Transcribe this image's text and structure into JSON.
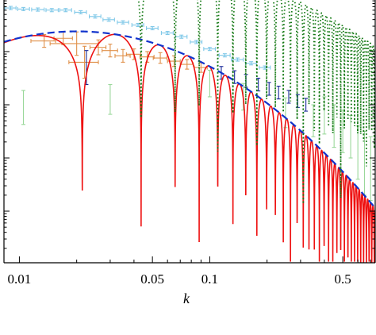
{
  "chart_data": {
    "type": "line",
    "title": "",
    "xlabel": "k",
    "ylabel": "",
    "x_scale": "log",
    "y_scale": "log",
    "xlim": [
      0.0083,
      0.74
    ],
    "ylim": [
      -3.97,
      0.97
    ],
    "x_ticks": [
      {
        "value": 0.01,
        "label": "0.01"
      },
      {
        "value": 0.05,
        "label": "0.05"
      },
      {
        "value": 0.1,
        "label": "0.1"
      },
      {
        "value": 0.5,
        "label": "0.5"
      }
    ],
    "y_tick_values": [
      0.0,
      -1.0,
      -2.0,
      -3.0
    ],
    "minor_x_ticks": [
      0.02,
      0.03,
      0.04,
      0.06,
      0.07,
      0.08,
      0.09,
      0.2,
      0.3,
      0.4,
      0.6,
      0.7
    ],
    "grid": false,
    "legend": "none",
    "series": [
      {
        "style": "solid",
        "color": "#ee1111",
        "model": {
          "amplitude": 0.38,
          "peak_k": 0.02,
          "slope": 1.35,
          "period_k": 0.0222,
          "phase_k": 0.0103
        },
        "floor": -3.95
      },
      {
        "style": "dashed",
        "color": "#1133cc",
        "model": {
          "amplitude": 0.38,
          "peak_k": 0.02,
          "slope": 1.35
        }
      },
      {
        "style": "dotted",
        "color": "#117711",
        "model": {
          "amplitude": 1.7,
          "peak_k": 0.04,
          "slope": 1.0,
          "period_k": 0.0222,
          "phase_k": 0.0103
        },
        "floor": -3.95,
        "k_min": 0.027
      }
    ],
    "error_bar_sets": [
      {
        "color": "#7fc8e8",
        "points": [
          {
            "k": 0.009,
            "y": 0.82,
            "dy": 0.03,
            "k_lo": 0.0084,
            "k_hi": 0.0096
          },
          {
            "k": 0.0105,
            "y": 0.8,
            "dy": 0.03,
            "k_lo": 0.0098,
            "k_hi": 0.0113
          },
          {
            "k": 0.0125,
            "y": 0.79,
            "dy": 0.03,
            "k_lo": 0.0116,
            "k_hi": 0.0135
          },
          {
            "k": 0.0148,
            "y": 0.78,
            "dy": 0.03,
            "k_lo": 0.0138,
            "k_hi": 0.016
          },
          {
            "k": 0.0175,
            "y": 0.78,
            "dy": 0.03,
            "k_lo": 0.0163,
            "k_hi": 0.0188
          },
          {
            "k": 0.021,
            "y": 0.74,
            "dy": 0.03,
            "k_lo": 0.0195,
            "k_hi": 0.0225
          },
          {
            "k": 0.025,
            "y": 0.66,
            "dy": 0.03,
            "k_lo": 0.0233,
            "k_hi": 0.0268
          },
          {
            "k": 0.0295,
            "y": 0.6,
            "dy": 0.03,
            "k_lo": 0.0275,
            "k_hi": 0.0316
          },
          {
            "k": 0.035,
            "y": 0.55,
            "dy": 0.03,
            "k_lo": 0.0327,
            "k_hi": 0.0375
          },
          {
            "k": 0.042,
            "y": 0.5,
            "dy": 0.03,
            "k_lo": 0.039,
            "k_hi": 0.045
          },
          {
            "k": 0.05,
            "y": 0.44,
            "dy": 0.03,
            "k_lo": 0.0465,
            "k_hi": 0.0535
          },
          {
            "k": 0.06,
            "y": 0.35,
            "dy": 0.03,
            "k_lo": 0.0557,
            "k_hi": 0.0643
          },
          {
            "k": 0.071,
            "y": 0.28,
            "dy": 0.03,
            "k_lo": 0.066,
            "k_hi": 0.076
          },
          {
            "k": 0.085,
            "y": 0.18,
            "dy": 0.03,
            "k_lo": 0.079,
            "k_hi": 0.091
          },
          {
            "k": 0.1,
            "y": 0.05,
            "dy": 0.03,
            "k_lo": 0.093,
            "k_hi": 0.107
          },
          {
            "k": 0.12,
            "y": -0.07,
            "dy": 0.03,
            "k_lo": 0.112,
            "k_hi": 0.128
          },
          {
            "k": 0.14,
            "y": -0.15,
            "dy": 0.03,
            "k_lo": 0.13,
            "k_hi": 0.15
          },
          {
            "k": 0.165,
            "y": -0.22,
            "dy": 0.03,
            "k_lo": 0.154,
            "k_hi": 0.176
          },
          {
            "k": 0.195,
            "y": -0.3,
            "dy": 0.03,
            "k_lo": 0.182,
            "k_hi": 0.208
          }
        ]
      },
      {
        "color": "#e0904a",
        "points": [
          {
            "k": 0.0135,
            "y": 0.2,
            "dy": 0.12,
            "k_lo": 0.0115,
            "k_hi": 0.0155
          },
          {
            "k": 0.017,
            "y": 0.25,
            "dy": 0.12,
            "k_lo": 0.0152,
            "k_hi": 0.019
          },
          {
            "k": 0.02,
            "y": 0.15,
            "dy": 0.22,
            "k_lo": 0.0145,
            "k_hi": 0.026
          },
          {
            "k": 0.022,
            "y": -0.2,
            "dy": 0.3,
            "k_lo": 0.0182,
            "k_hi": 0.026
          },
          {
            "k": 0.026,
            "y": 0.08,
            "dy": 0.14,
            "k_lo": 0.0235,
            "k_hi": 0.0285
          },
          {
            "k": 0.03,
            "y": 0.02,
            "dy": 0.12,
            "k_lo": 0.0272,
            "k_hi": 0.0328
          },
          {
            "k": 0.035,
            "y": -0.08,
            "dy": 0.12,
            "k_lo": 0.0318,
            "k_hi": 0.0382
          },
          {
            "k": 0.04,
            "y": -0.05,
            "dy": 0.1,
            "k_lo": 0.0365,
            "k_hi": 0.0435
          },
          {
            "k": 0.047,
            "y": -0.1,
            "dy": 0.1,
            "k_lo": 0.043,
            "k_hi": 0.051
          },
          {
            "k": 0.055,
            "y": -0.12,
            "dy": 0.1,
            "k_lo": 0.0505,
            "k_hi": 0.0595
          },
          {
            "k": 0.065,
            "y": -0.18,
            "dy": 0.1,
            "k_lo": 0.06,
            "k_hi": 0.07
          },
          {
            "k": 0.076,
            "y": -0.24,
            "dy": 0.09,
            "k_lo": 0.07,
            "k_hi": 0.082
          },
          {
            "k": 0.09,
            "y": -0.3,
            "dy": 0.09,
            "k_lo": 0.083,
            "k_hi": 0.097
          }
        ]
      },
      {
        "color": "#1a2a99",
        "points": [
          {
            "k": 0.0225,
            "y": -0.3,
            "dy": 0.32,
            "k_lo": 0.0225,
            "k_hi": 0.0225
          },
          {
            "k": 0.115,
            "y": -0.4,
            "dy": 0.12,
            "k_lo": 0.115,
            "k_hi": 0.115
          },
          {
            "k": 0.135,
            "y": -0.48,
            "dy": 0.12,
            "k_lo": 0.135,
            "k_hi": 0.135
          },
          {
            "k": 0.155,
            "y": -0.55,
            "dy": 0.12,
            "k_lo": 0.155,
            "k_hi": 0.155
          },
          {
            "k": 0.18,
            "y": -0.62,
            "dy": 0.12,
            "k_lo": 0.18,
            "k_hi": 0.18
          },
          {
            "k": 0.205,
            "y": -0.7,
            "dy": 0.12,
            "k_lo": 0.205,
            "k_hi": 0.205
          },
          {
            "k": 0.23,
            "y": -0.77,
            "dy": 0.12,
            "k_lo": 0.23,
            "k_hi": 0.23
          },
          {
            "k": 0.26,
            "y": -0.85,
            "dy": 0.12,
            "k_lo": 0.26,
            "k_hi": 0.26
          },
          {
            "k": 0.29,
            "y": -0.93,
            "dy": 0.12,
            "k_lo": 0.29,
            "k_hi": 0.29
          },
          {
            "k": 0.32,
            "y": -1.0,
            "dy": 0.12,
            "k_lo": 0.32,
            "k_hi": 0.32
          }
        ]
      },
      {
        "color": "#9ad89a",
        "points": [
          {
            "k": 0.0105,
            "y": -1.05,
            "dy": 0.32,
            "k_lo": 0.0105,
            "k_hi": 0.0105
          },
          {
            "k": 0.03,
            "y": -0.9,
            "dy": 0.28,
            "k_lo": 0.03,
            "k_hi": 0.03
          },
          {
            "k": 0.1,
            "y": -0.6,
            "dy": 0.25,
            "k_lo": 0.1,
            "k_hi": 0.1
          },
          {
            "k": 0.15,
            "y": -0.85,
            "dy": 0.25,
            "k_lo": 0.15,
            "k_hi": 0.15
          },
          {
            "k": 0.25,
            "y": -1.15,
            "dy": 0.28,
            "k_lo": 0.25,
            "k_hi": 0.25
          },
          {
            "k": 0.35,
            "y": -1.3,
            "dy": 0.3,
            "k_lo": 0.35,
            "k_hi": 0.35
          },
          {
            "k": 0.4,
            "y": -1.2,
            "dy": 0.35,
            "k_lo": 0.4,
            "k_hi": 0.4
          },
          {
            "k": 0.45,
            "y": -1.4,
            "dy": 0.4,
            "k_lo": 0.45,
            "k_hi": 0.45
          },
          {
            "k": 0.5,
            "y": -1.5,
            "dy": 0.4,
            "k_lo": 0.5,
            "k_hi": 0.5
          },
          {
            "k": 0.55,
            "y": -1.6,
            "dy": 0.4,
            "k_lo": 0.55,
            "k_hi": 0.55
          },
          {
            "k": 0.6,
            "y": -1.9,
            "dy": 0.5,
            "k_lo": 0.6,
            "k_hi": 0.6
          },
          {
            "k": 0.65,
            "y": -2.1,
            "dy": 0.6,
            "k_lo": 0.65,
            "k_hi": 0.65
          },
          {
            "k": 0.7,
            "y": -2.2,
            "dy": 0.6,
            "k_lo": 0.7,
            "k_hi": 0.7
          }
        ]
      }
    ]
  }
}
